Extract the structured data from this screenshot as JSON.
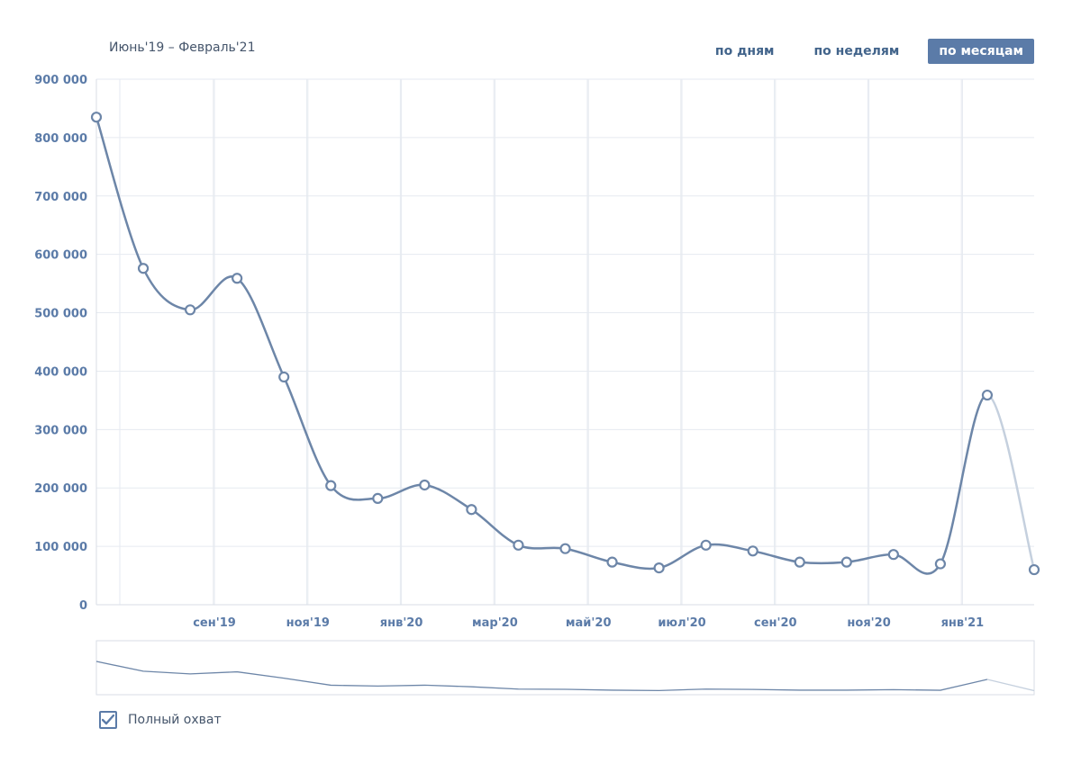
{
  "header": {
    "period": "Июнь'19 – Февраль'21",
    "tabs": [
      {
        "label": "по дням",
        "active": false
      },
      {
        "label": "по неделям",
        "active": false
      },
      {
        "label": "по месяцам",
        "active": true
      }
    ]
  },
  "legend": {
    "label": "Полный охват",
    "checked": true,
    "icon": "checkmark-icon"
  },
  "colors": {
    "line": "#6d86a8",
    "line_projected": "#c5d0de",
    "grid": "#e6eaf0",
    "tick_text": "#5b7ba8",
    "active_tab": "#5b7ba8"
  },
  "chart_data": {
    "type": "line",
    "y_ticks": [
      "0",
      "100 000",
      "200 000",
      "300 000",
      "400 000",
      "500 000",
      "600 000",
      "700 000",
      "800 000",
      "900 000"
    ],
    "ylim": [
      0,
      900000
    ],
    "x_ticks": [
      "сен'19",
      "ноя'19",
      "янв'20",
      "мар'20",
      "май'20",
      "июл'20",
      "сен'20",
      "ноя'20",
      "янв'21"
    ],
    "series": [
      {
        "values": [
          835000,
          576000,
          505000,
          559000,
          390000,
          204000,
          182000,
          205000,
          163000,
          102000,
          96000,
          73000,
          63000,
          102000,
          92000,
          73000,
          73000,
          86000,
          70000,
          359000,
          60000
        ],
        "last_segment_projected": true
      }
    ],
    "grid": true,
    "navigator": true
  }
}
